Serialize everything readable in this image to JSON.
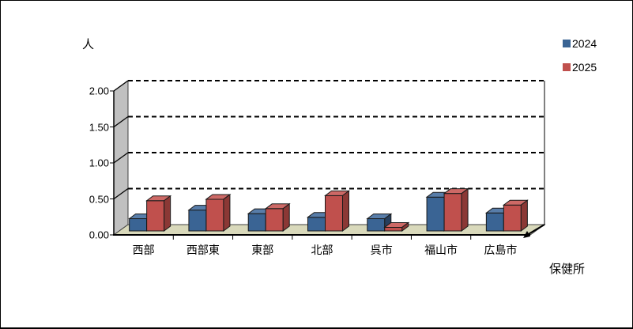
{
  "chart_data": {
    "type": "bar",
    "style": "3d-clustered-column",
    "title": "",
    "ylabel": "人",
    "xlabel": "保健所",
    "categories": [
      "西部",
      "西部東",
      "東部",
      "北部",
      "呉市",
      "福山市",
      "広島市"
    ],
    "series": [
      {
        "name": "2024",
        "values": [
          0.17,
          0.29,
          0.24,
          0.19,
          0.17,
          0.47,
          0.25
        ],
        "color": "#3A6494",
        "top_color": "#587DA9",
        "side_color": "#263F5E"
      },
      {
        "name": "2025",
        "values": [
          0.42,
          0.44,
          0.31,
          0.49,
          0.05,
          0.52,
          0.36
        ],
        "color": "#C0504D",
        "top_color": "#CD6966",
        "side_color": "#8B3835"
      }
    ],
    "yticks": [
      0.0,
      0.5,
      1.0,
      1.5,
      2.0
    ],
    "ytick_format": "0.00",
    "ylim": [
      0,
      2
    ],
    "grid": "dashed-horizontal",
    "legend_position": "top-right",
    "wall_color": "#C0C0C0",
    "floor_color": "#D9D9BB",
    "background_color": "#FFFFFF"
  }
}
